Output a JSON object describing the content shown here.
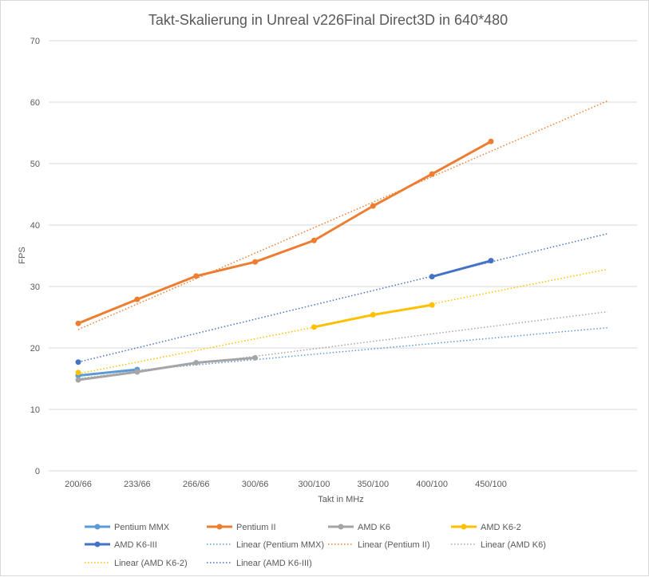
{
  "chart_data": {
    "type": "line",
    "title": "Takt-Skalierung in Unreal v226Final Direct3D in 640*480",
    "xlabel": "Takt in MHz",
    "ylabel": "FPS",
    "ylim": [
      0,
      70
    ],
    "y_ticks": [
      "0",
      "10",
      "20",
      "30",
      "40",
      "50",
      "60",
      "70"
    ],
    "gridlines": true,
    "categories": [
      "200/66",
      "233/66",
      "266/66",
      "300/66",
      "300/100",
      "350/100",
      "400/100",
      "450/100"
    ],
    "series": [
      {
        "name": "Pentium MMX",
        "color": "#5b9bd5",
        "values": [
          15.5,
          16.5,
          null,
          null,
          null,
          null,
          null,
          null
        ]
      },
      {
        "name": "Pentium II",
        "color": "#ed7d31",
        "values": [
          24.0,
          27.9,
          31.7,
          34.0,
          37.5,
          43.1,
          48.3,
          53.6
        ]
      },
      {
        "name": "AMD K6",
        "color": "#a5a5a5",
        "values": [
          14.8,
          16.1,
          17.6,
          18.4,
          null,
          null,
          null,
          null
        ]
      },
      {
        "name": "AMD K6-2",
        "color": "#ffc000",
        "values": [
          16.0,
          null,
          null,
          null,
          23.4,
          25.4,
          27.0,
          null
        ]
      },
      {
        "name": "AMD K6-III",
        "color": "#4472c4",
        "values": [
          17.7,
          null,
          null,
          null,
          null,
          null,
          31.6,
          34.2
        ]
      }
    ],
    "trendlines": [
      {
        "name": "Linear (Pentium MMX)",
        "color": "#5b9bd5",
        "start": 15.5,
        "end": 23.3
      },
      {
        "name": "Linear (Pentium II)",
        "color": "#ed7d31",
        "start": 23.0,
        "end": 60.2
      },
      {
        "name": "Linear (AMD K6)",
        "color": "#a5a5a5",
        "start": 15.0,
        "end": 25.9
      },
      {
        "name": "Linear (AMD K6-2)",
        "color": "#ffc000",
        "start": 15.8,
        "end": 32.8
      },
      {
        "name": "Linear (AMD K6-III)",
        "color": "#4472c4",
        "start": 17.7,
        "end": 38.6
      }
    ],
    "legend_position": "bottom",
    "legend": [
      "Pentium MMX",
      "Pentium II",
      "AMD K6",
      "AMD K6-2",
      "AMD K6-III",
      "Linear (Pentium MMX)",
      "Linear (Pentium II)",
      "Linear (AMD K6)",
      "Linear (AMD K6-2)",
      "Linear (AMD K6-III)"
    ]
  }
}
